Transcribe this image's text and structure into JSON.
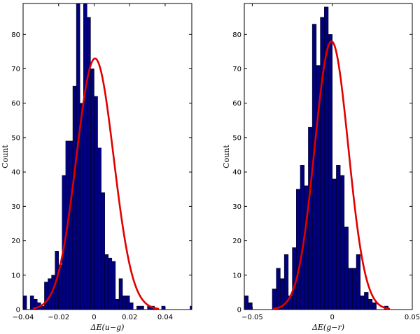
{
  "chart_data": [
    {
      "type": "bar",
      "xlabel": "ΔE(u−g)",
      "ylabel": "Count",
      "xlim": [
        -0.04,
        0.055
      ],
      "ylim": [
        0,
        89
      ],
      "xticks": [
        -0.04,
        -0.02,
        0,
        0.02,
        0.04
      ],
      "xtick_labels": [
        "−0.04",
        "−0.02",
        "0",
        "0.02",
        "0.04"
      ],
      "yticks": [
        0,
        10,
        20,
        30,
        40,
        50,
        60,
        70,
        80
      ],
      "ytick_labels": [
        "0",
        "10",
        "20",
        "30",
        "40",
        "50",
        "60",
        "70",
        "80"
      ],
      "bar_color": "#000080",
      "curve_color": "#e00000",
      "bins": {
        "start": -0.04,
        "width": 0.002,
        "counts": [
          4,
          0,
          4,
          3,
          2,
          1,
          8,
          9,
          10,
          17,
          13,
          39,
          49,
          49,
          65,
          89,
          60,
          89,
          85,
          70,
          62,
          47,
          34,
          16,
          15,
          14,
          3,
          9,
          4,
          4,
          2,
          0,
          1,
          1,
          0,
          1,
          1,
          0,
          0,
          1,
          0,
          0,
          0,
          0,
          0,
          0,
          0,
          1
        ]
      },
      "fit": {
        "mean": 0.0005,
        "sigma": 0.0105,
        "peak": 73,
        "xmin": -0.0345,
        "xmax": 0.0365
      }
    },
    {
      "type": "bar",
      "xlabel": "ΔE(g−r)",
      "ylabel": "Count",
      "xlim": [
        -0.055,
        0.05
      ],
      "ylim": [
        0,
        89
      ],
      "xticks": [
        -0.05,
        0,
        0.05
      ],
      "xtick_labels": [
        "−0.05",
        "0",
        "0.05"
      ],
      "yticks": [
        0,
        10,
        20,
        30,
        40,
        50,
        60,
        70,
        80
      ],
      "ytick_labels": [
        "0",
        "10",
        "20",
        "30",
        "40",
        "50",
        "60",
        "70",
        "80"
      ],
      "bar_color": "#000080",
      "curve_color": "#e00000",
      "bins": {
        "start": -0.055,
        "width": 0.0025,
        "counts": [
          4,
          2,
          0,
          0,
          0,
          0,
          0,
          6,
          12,
          9,
          16,
          4,
          18,
          35,
          42,
          36,
          53,
          83,
          71,
          85,
          88,
          80,
          38,
          42,
          39,
          24,
          12,
          12,
          16,
          4,
          5,
          3,
          2,
          0,
          0,
          1,
          0,
          0,
          0,
          0,
          0,
          0
        ]
      },
      "fit": {
        "mean": -0.0005,
        "sigma": 0.0105,
        "peak": 78,
        "xmin": -0.037,
        "xmax": 0.036
      }
    }
  ]
}
